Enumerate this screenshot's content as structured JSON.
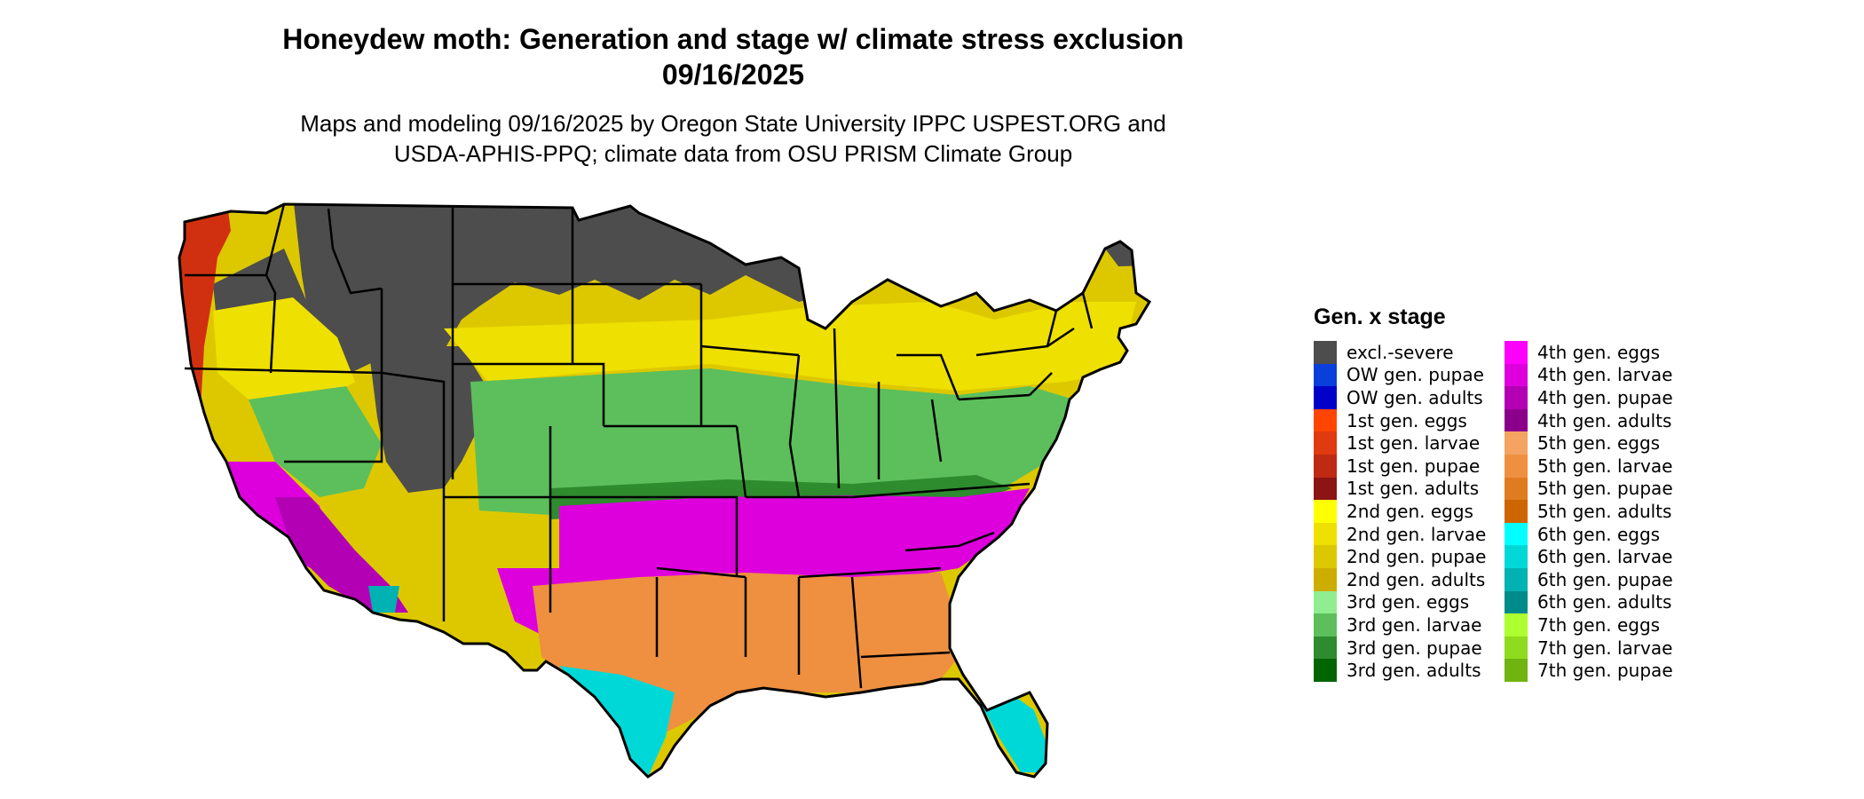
{
  "map": {
    "title_line1": "Honeydew moth: Generation and stage w/ climate stress exclusion",
    "title_line2": "09/16/2025",
    "subtitle_line1": "Maps and modeling 09/16/2025 by Oregon State University IPPC USPEST.ORG and",
    "subtitle_line2": "USDA-APHIS-PPQ; climate data from OSU PRISM Climate Group"
  },
  "legend": {
    "title": "Gen. x stage",
    "items": [
      {
        "label": "excl.-severe",
        "color": "#4d4d4d"
      },
      {
        "label": "OW gen. pupae",
        "color": "#0a3fdc"
      },
      {
        "label": "OW gen. adults",
        "color": "#0000c8"
      },
      {
        "label": "1st gen. eggs",
        "color": "#ff4500"
      },
      {
        "label": "1st gen. larvae",
        "color": "#e03a10"
      },
      {
        "label": "1st gen. pupae",
        "color": "#bf2a12"
      },
      {
        "label": "1st gen. adults",
        "color": "#8b1414"
      },
      {
        "label": "2nd gen. eggs",
        "color": "#ffff00"
      },
      {
        "label": "2nd gen. larvae",
        "color": "#eee000"
      },
      {
        "label": "2nd gen. pupae",
        "color": "#dcc800"
      },
      {
        "label": "2nd gen. adults",
        "color": "#cdad00"
      },
      {
        "label": "3rd gen. eggs",
        "color": "#90ee90"
      },
      {
        "label": "3rd gen. larvae",
        "color": "#5cbf5c"
      },
      {
        "label": "3rd gen. pupae",
        "color": "#2e8b2e"
      },
      {
        "label": "3rd gen. adults",
        "color": "#006400"
      },
      {
        "label": "4th gen. eggs",
        "color": "#ff00ff"
      },
      {
        "label": "4th gen. larvae",
        "color": "#dd00dd"
      },
      {
        "label": "4th gen. pupae",
        "color": "#b400b4"
      },
      {
        "label": "4th gen. adults",
        "color": "#8b008b"
      },
      {
        "label": "5th gen. eggs",
        "color": "#f4a460"
      },
      {
        "label": "5th gen. larvae",
        "color": "#ee9040"
      },
      {
        "label": "5th gen. pupae",
        "color": "#e07c20"
      },
      {
        "label": "5th gen. adults",
        "color": "#cd6600"
      },
      {
        "label": "6th gen. eggs",
        "color": "#00ffff"
      },
      {
        "label": "6th gen. larvae",
        "color": "#00d8d8"
      },
      {
        "label": "6th gen. pupae",
        "color": "#00b2b2"
      },
      {
        "label": "6th gen. adults",
        "color": "#008b8b"
      },
      {
        "label": "7th gen. eggs",
        "color": "#adff2f"
      },
      {
        "label": "7th gen. larvae",
        "color": "#8fdc1e"
      },
      {
        "label": "7th gen. pupae",
        "color": "#6fb40f"
      }
    ]
  }
}
